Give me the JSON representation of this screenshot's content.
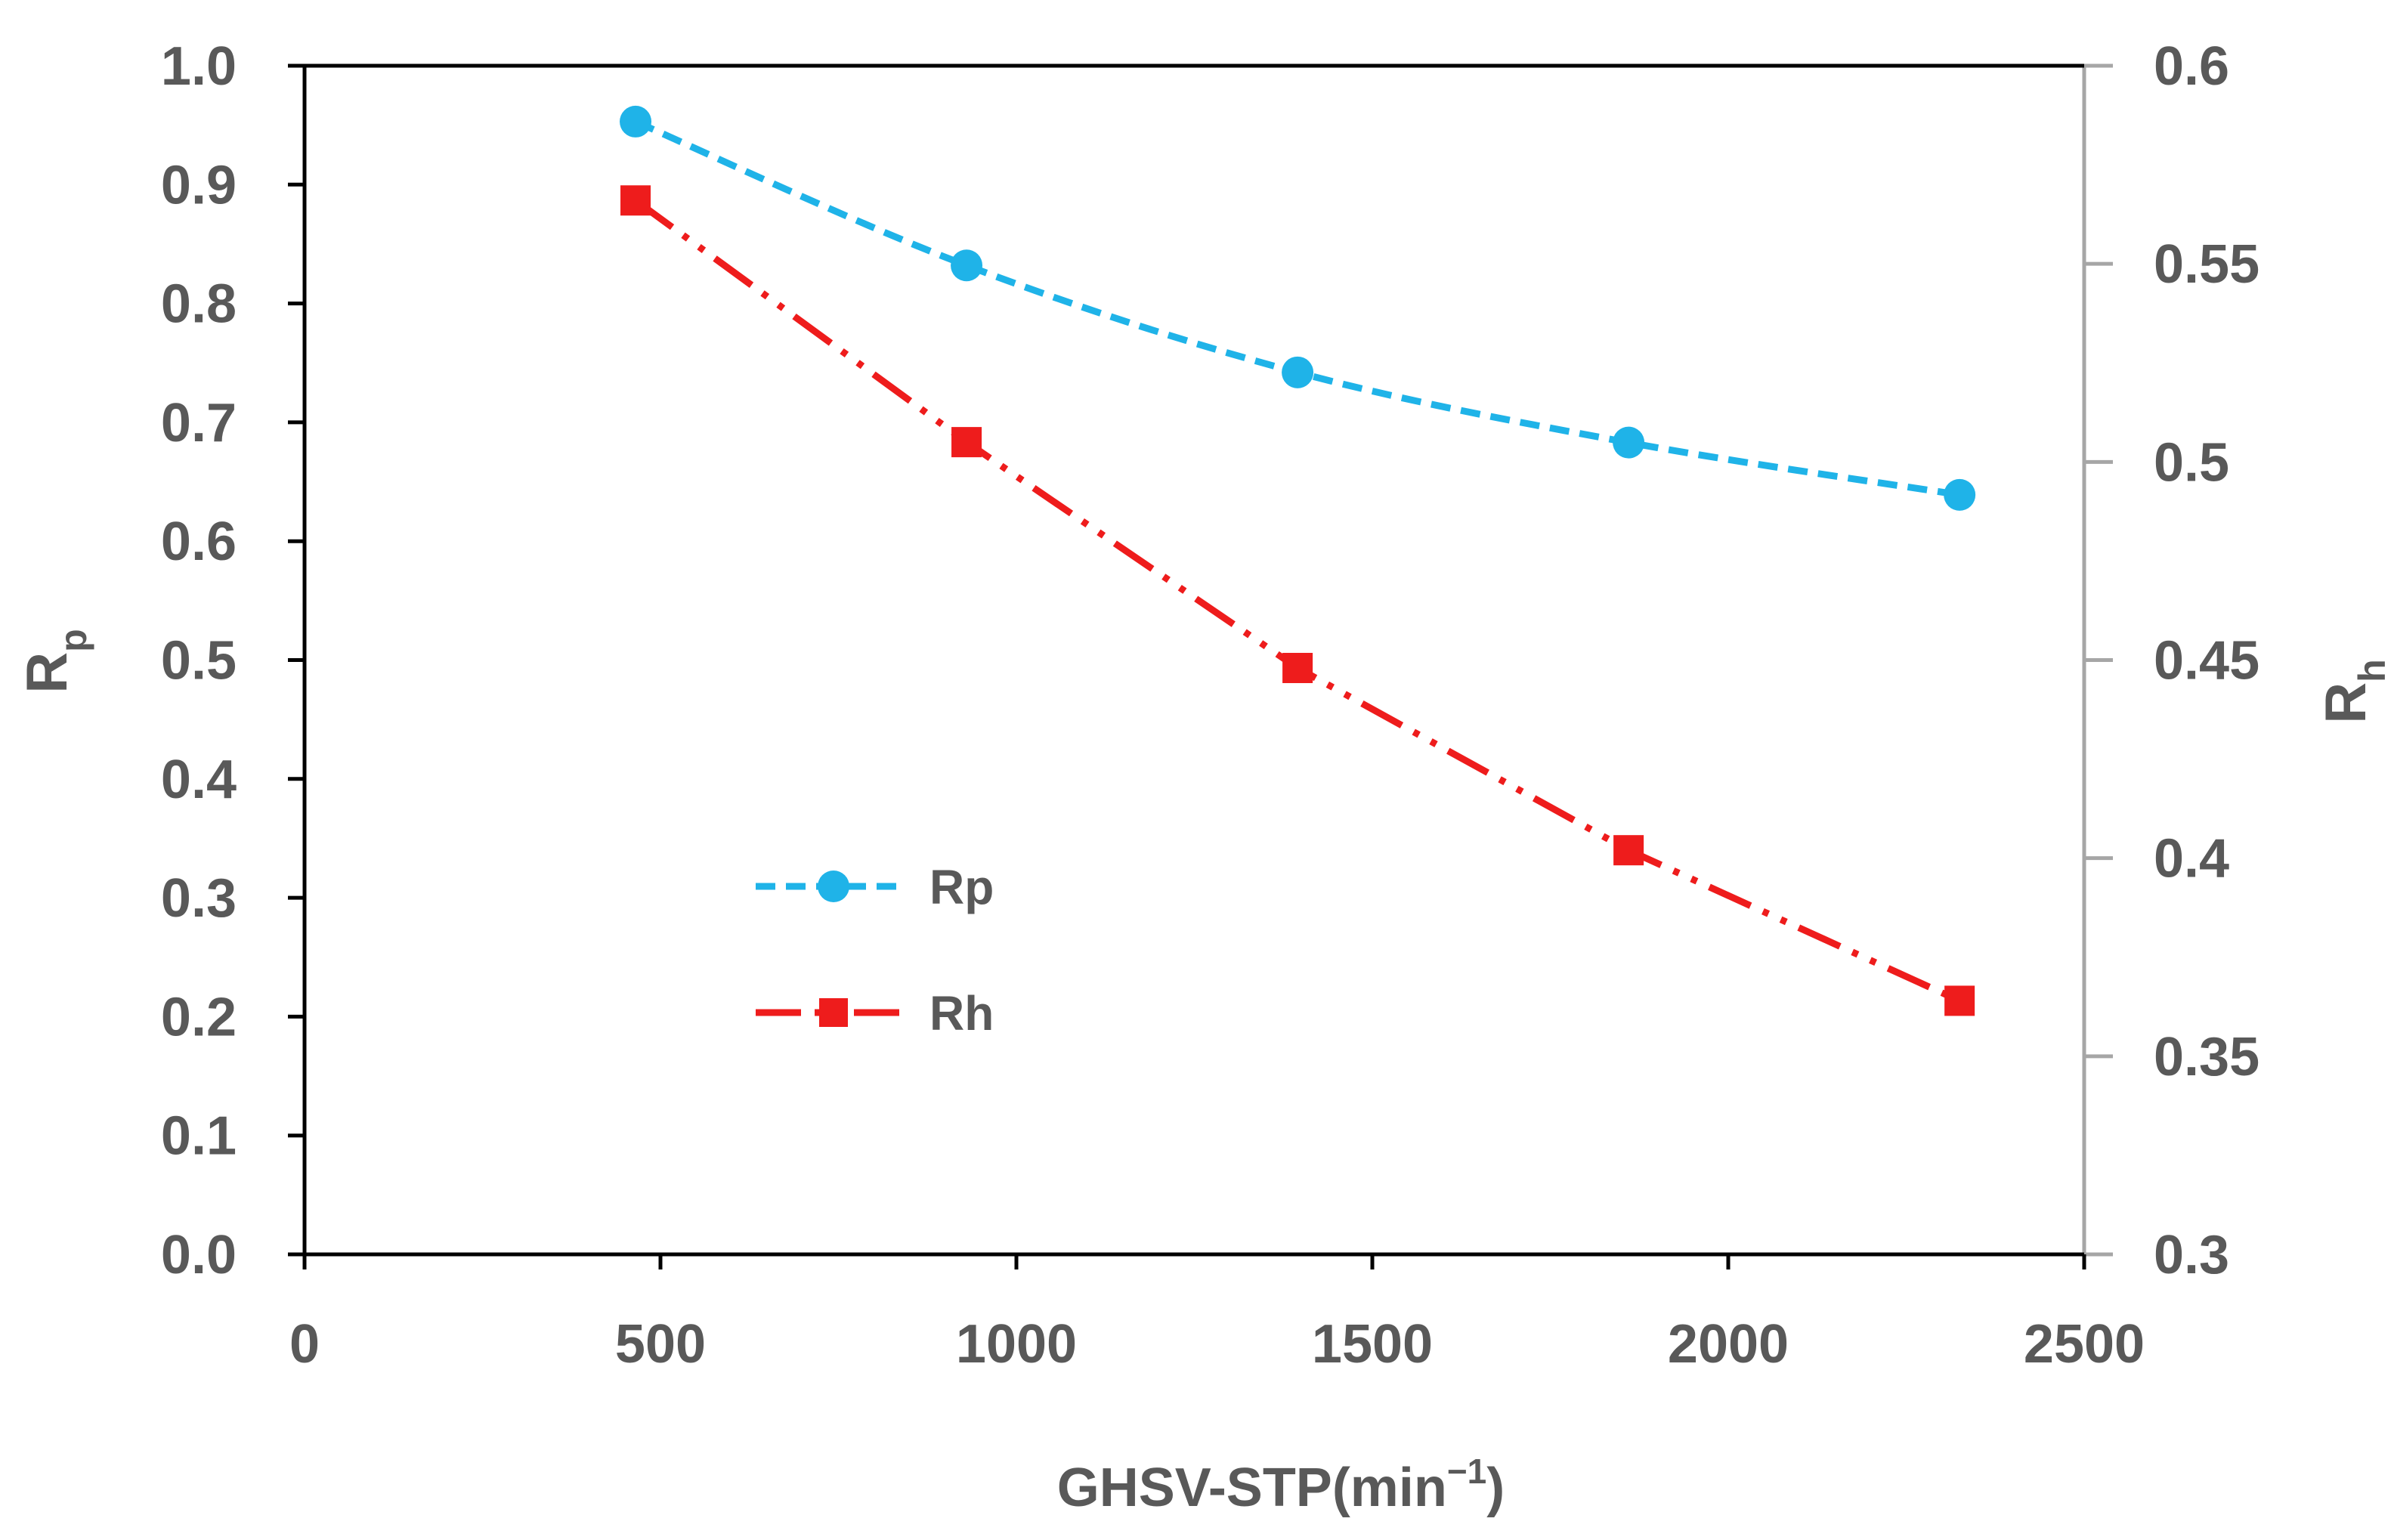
{
  "chart_data": {
    "type": "line",
    "title": "",
    "x_axis": {
      "label": "GHSV-STP(min",
      "label_superscript": "−1",
      "label_close": ")",
      "range": [
        0,
        2500
      ],
      "ticks": [
        "0",
        "500",
        "1000",
        "1500",
        "2000",
        "2500"
      ]
    },
    "y_left_axis": {
      "label_main": "R",
      "label_sub": "p",
      "range": [
        0,
        1.0
      ],
      "ticks": [
        "0.0",
        "0.1",
        "0.2",
        "0.3",
        "0.4",
        "0.5",
        "0.6",
        "0.7",
        "0.8",
        "0.9",
        "1.0"
      ]
    },
    "y_right_axis": {
      "label_main": "R",
      "label_sub": "h",
      "range": [
        0.3,
        0.6
      ],
      "ticks": [
        "0.3",
        "0.35",
        "0.4",
        "0.45",
        "0.5",
        "0.55",
        "0.6"
      ]
    },
    "grid": false,
    "legend_position": "center-left",
    "series": [
      {
        "name": "Rp",
        "axis": "left",
        "color": "#1fb3e8",
        "marker": "circle",
        "line_style": "dashed",
        "x": [
          465,
          930,
          1395,
          1860,
          2325
        ],
        "y": [
          0.953,
          0.832,
          0.742,
          0.683,
          0.639
        ]
      },
      {
        "name": "Rh",
        "axis": "right",
        "color": "#ee1c1c",
        "marker": "square",
        "line_style": "dash-dot-dot",
        "x": [
          465,
          930,
          1395,
          1860,
          2325
        ],
        "y": [
          0.566,
          0.505,
          0.448,
          0.402,
          0.364
        ]
      }
    ]
  }
}
